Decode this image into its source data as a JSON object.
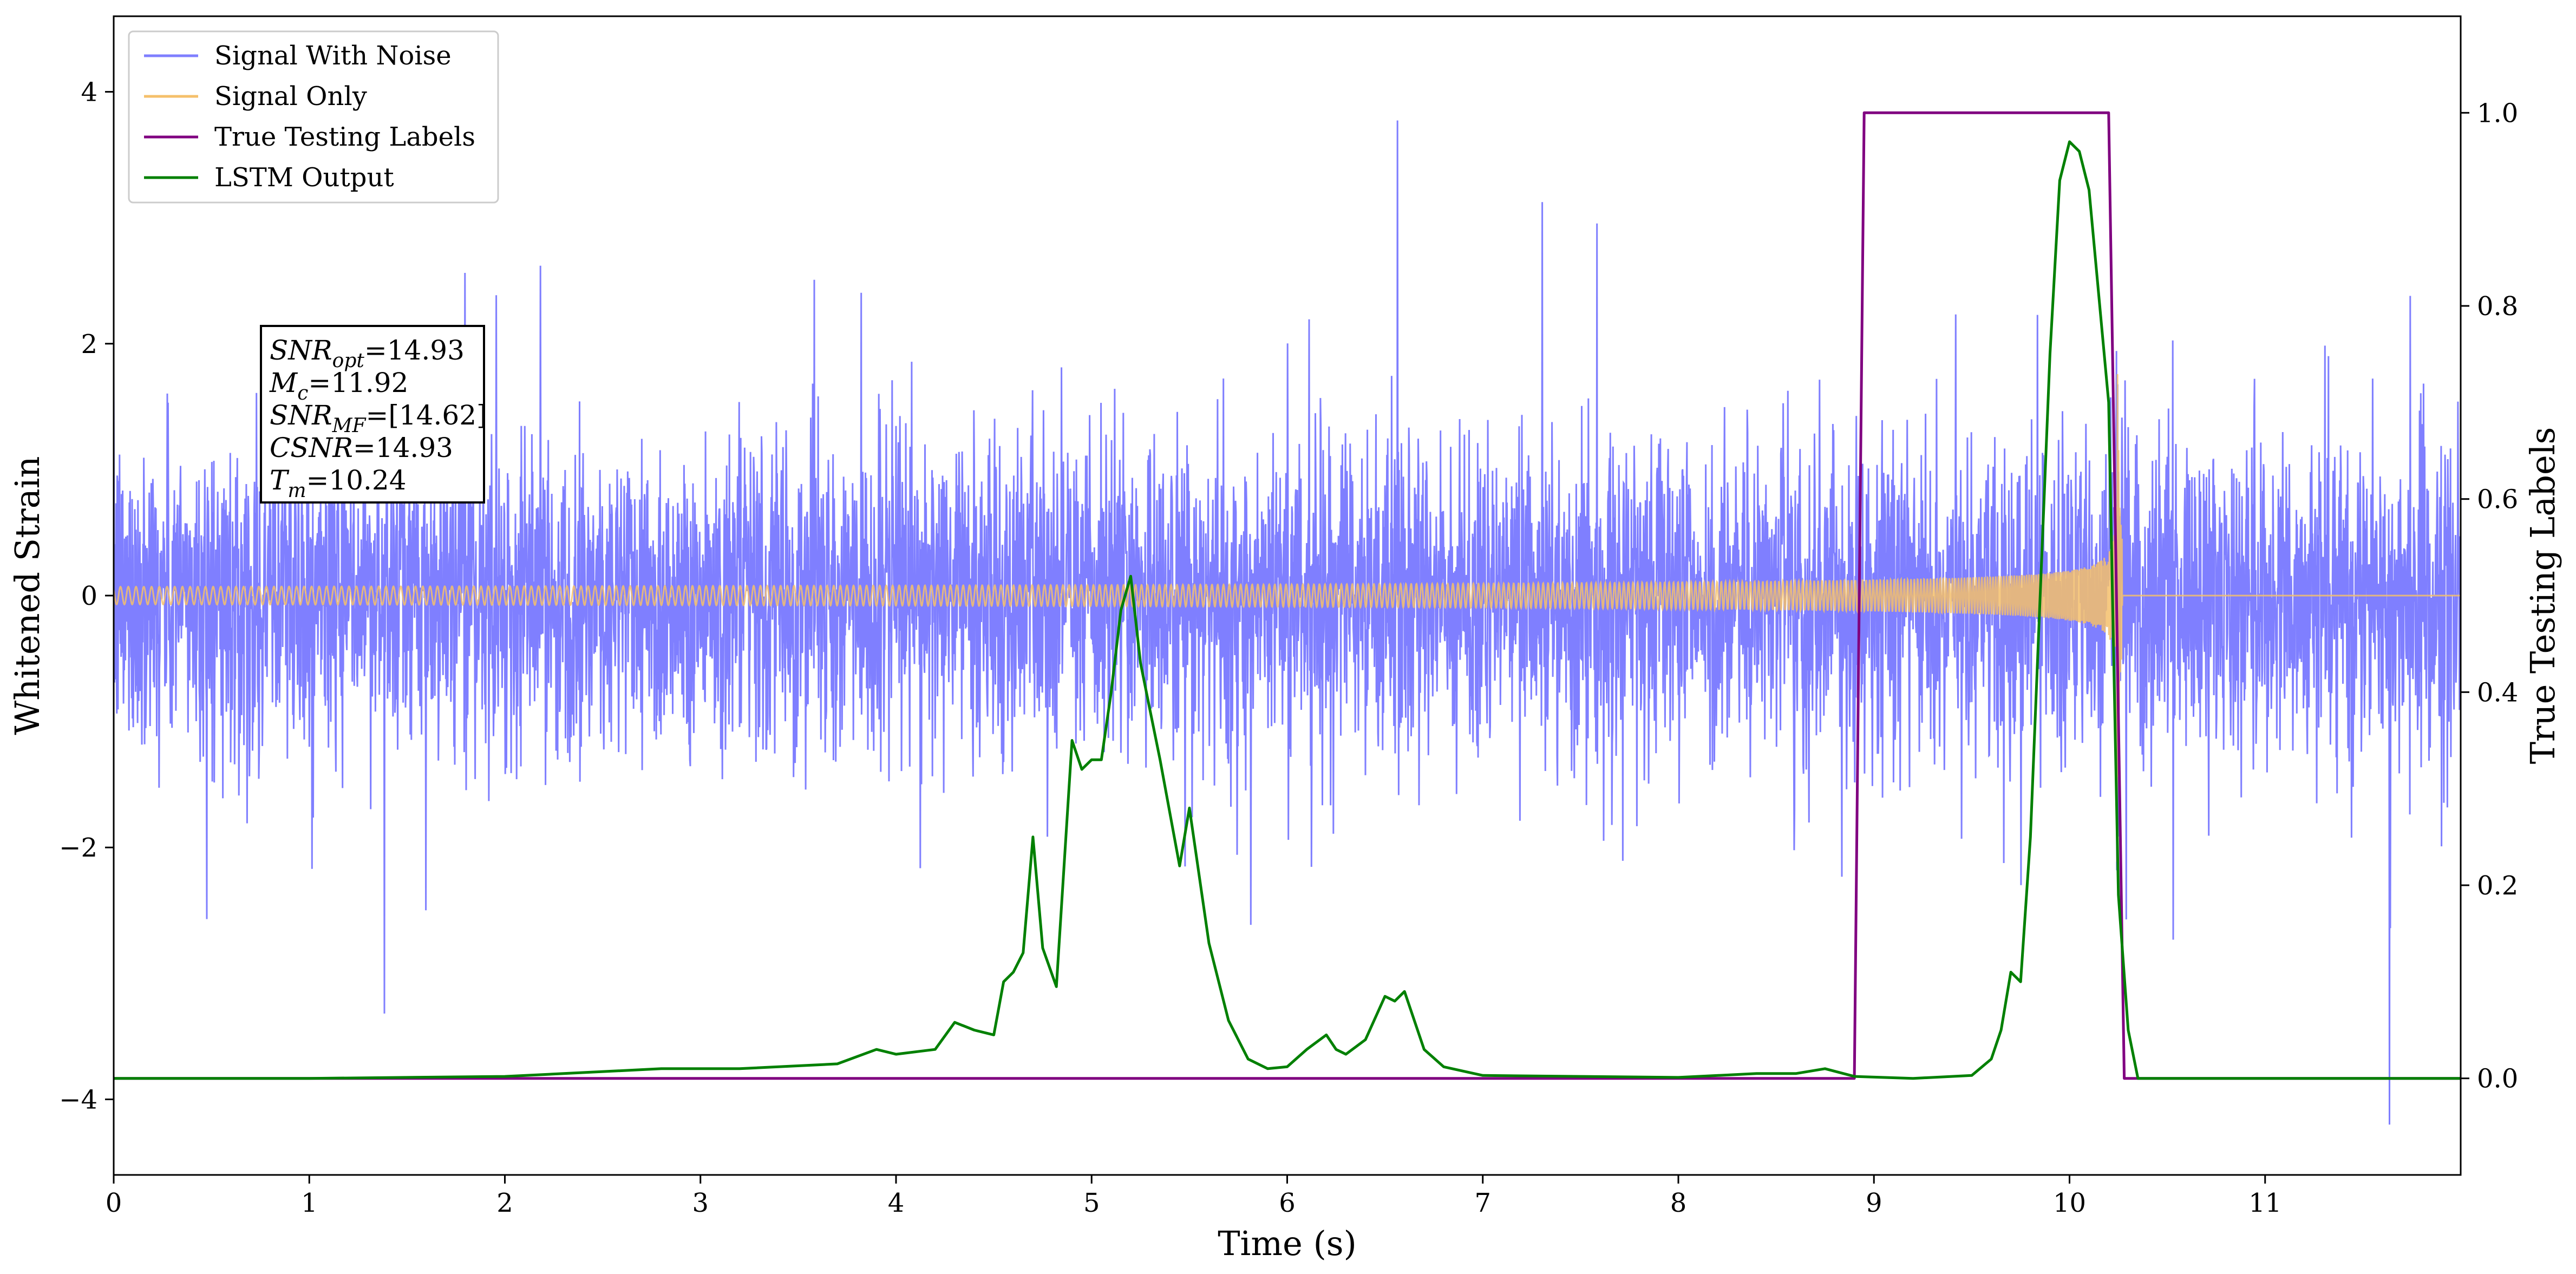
{
  "chart_data": {
    "type": "line",
    "title": "",
    "xlabel": "Time (s)",
    "ylabel": "Whitened Strain",
    "y2label": "True Testing Labels",
    "xlim": [
      0,
      12
    ],
    "ylim": [
      -4.6,
      4.6
    ],
    "y2lim": [
      -0.1,
      1.1
    ],
    "xticks": [
      "0",
      "1",
      "2",
      "3",
      "4",
      "5",
      "6",
      "7",
      "8",
      "9",
      "10",
      "11"
    ],
    "yticks": [
      "−4",
      "−2",
      "0",
      "2",
      "4"
    ],
    "y2ticks": [
      "0.0",
      "0.2",
      "0.4",
      "0.6",
      "0.8",
      "1.0"
    ],
    "legend_position": "top-left",
    "series": [
      {
        "name": "Signal With Noise",
        "axis": "left",
        "color": "#7f7fff",
        "kind": "noise",
        "typical_amplitude": [
          -1.6,
          1.6
        ],
        "peak_range": [
          -4.2,
          4.2
        ]
      },
      {
        "name": "Signal Only",
        "axis": "left",
        "color": "#f5c06b",
        "kind": "chirp",
        "merger_time": 10.24,
        "peak_amplitude": 2.5
      },
      {
        "name": "True Testing Labels",
        "axis": "right",
        "color": "#800080",
        "x": [
          0,
          8.9,
          8.95,
          10.2,
          10.28,
          12
        ],
        "y": [
          0,
          0,
          1,
          1,
          0,
          0
        ]
      },
      {
        "name": "LSTM Output",
        "axis": "right",
        "color": "#008000",
        "x": [
          0,
          1,
          2,
          2.3,
          2.8,
          3.2,
          3.7,
          3.9,
          4.0,
          4.2,
          4.3,
          4.4,
          4.5,
          4.55,
          4.6,
          4.65,
          4.7,
          4.75,
          4.82,
          4.9,
          4.95,
          5.0,
          5.05,
          5.1,
          5.15,
          5.2,
          5.25,
          5.3,
          5.35,
          5.45,
          5.5,
          5.6,
          5.7,
          5.8,
          5.9,
          6.0,
          6.1,
          6.2,
          6.25,
          6.3,
          6.4,
          6.5,
          6.55,
          6.6,
          6.65,
          6.7,
          6.8,
          7.0,
          7.5,
          8.0,
          8.4,
          8.6,
          8.75,
          8.9,
          9.2,
          9.5,
          9.6,
          9.65,
          9.7,
          9.75,
          9.8,
          9.85,
          9.9,
          9.95,
          10.0,
          10.05,
          10.1,
          10.2,
          10.25,
          10.3,
          10.35,
          10.5,
          12
        ],
        "y": [
          0,
          0,
          0.002,
          0.005,
          0.01,
          0.01,
          0.015,
          0.03,
          0.025,
          0.03,
          0.058,
          0.05,
          0.045,
          0.1,
          0.11,
          0.13,
          0.25,
          0.135,
          0.095,
          0.35,
          0.32,
          0.33,
          0.33,
          0.4,
          0.485,
          0.52,
          0.43,
          0.38,
          0.33,
          0.22,
          0.28,
          0.14,
          0.06,
          0.02,
          0.01,
          0.012,
          0.03,
          0.045,
          0.03,
          0.025,
          0.04,
          0.085,
          0.08,
          0.09,
          0.06,
          0.03,
          0.012,
          0.003,
          0.002,
          0.001,
          0.005,
          0.005,
          0.01,
          0.002,
          0.0,
          0.003,
          0.02,
          0.05,
          0.11,
          0.1,
          0.25,
          0.5,
          0.75,
          0.93,
          0.97,
          0.96,
          0.92,
          0.7,
          0.19,
          0.05,
          0.0,
          0.0,
          0.0
        ]
      }
    ],
    "annotation": [
      {
        "sym": "SNR",
        "sub": "opt",
        "val": "=14.93"
      },
      {
        "sym": "M",
        "sub": "c",
        "val": "=11.92"
      },
      {
        "sym": "SNR",
        "sub": "MF",
        "val": "=[14.62]"
      },
      {
        "sym": "CSNR",
        "sub": "",
        "val": "=14.93"
      },
      {
        "sym": "T",
        "sub": "m",
        "val": "=10.24"
      }
    ]
  }
}
